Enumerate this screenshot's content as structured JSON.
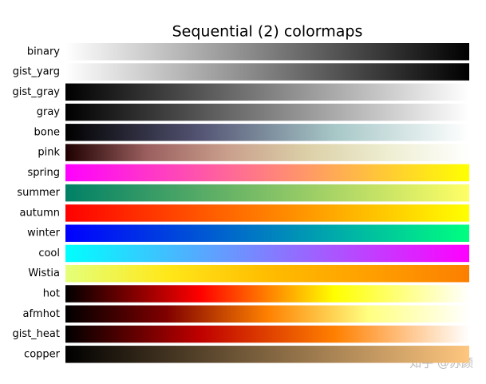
{
  "title": "Sequential (2) colormaps",
  "colormaps": [
    {
      "name": "binary",
      "colors": [
        "#ffffff",
        "#000000"
      ]
    },
    {
      "name": "gist_yarg",
      "colors": [
        "#ffffff",
        "#000000"
      ]
    },
    {
      "name": "gist_gray",
      "colors": [
        "#000000",
        "#ffffff"
      ]
    },
    {
      "name": "gray",
      "colors": [
        "#000000",
        "#ffffff"
      ]
    },
    {
      "name": "bone",
      "colors": [
        "#000000",
        "#545474",
        "#a7c7c7",
        "#ffffff"
      ]
    },
    {
      "name": "pink",
      "colors": [
        "#1e0000",
        "#9a5e5e",
        "#c99f8c",
        "#dcd0a8",
        "#eeeed2",
        "#ffffff"
      ]
    },
    {
      "name": "spring",
      "colors": [
        "#ff00ff",
        "#ffff00"
      ]
    },
    {
      "name": "summer",
      "colors": [
        "#008066",
        "#ffff66"
      ]
    },
    {
      "name": "autumn",
      "colors": [
        "#ff0000",
        "#ffff00"
      ]
    },
    {
      "name": "winter",
      "colors": [
        "#0000ff",
        "#00ff80"
      ]
    },
    {
      "name": "cool",
      "colors": [
        "#00ffff",
        "#ff00ff"
      ]
    },
    {
      "name": "Wistia",
      "colors": [
        "#e4ff7a",
        "#ffe81a",
        "#ffbd00",
        "#ffa000",
        "#fc7f00"
      ]
    },
    {
      "name": "hot",
      "colors": [
        "#000000",
        "#ff0000",
        "#ffff00",
        "#ffffff"
      ]
    },
    {
      "name": "afmhot",
      "colors": [
        "#000000",
        "#800000",
        "#ff8000",
        "#ffff80",
        "#ffffff"
      ]
    },
    {
      "name": "gist_heat",
      "colors": [
        "#000000",
        "#bf0000",
        "#ff8000",
        "#ffffff"
      ]
    },
    {
      "name": "copper",
      "colors": [
        "#000000",
        "#ffc77f"
      ]
    }
  ],
  "watermark": "知乎 @苏颜"
}
